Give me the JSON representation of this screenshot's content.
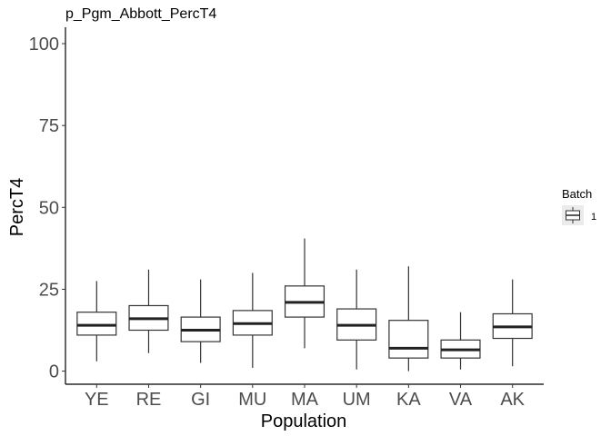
{
  "chart_data": {
    "type": "boxplot",
    "title": "p_Pgm_Abbott_PercT4",
    "xlabel": "Population",
    "ylabel": "PercT4",
    "ylim": [
      -4,
      105
    ],
    "yticks": [
      0,
      25,
      50,
      75,
      100
    ],
    "grid": false,
    "legend": {
      "title": "Batch",
      "entries": [
        "1"
      ],
      "position": "right"
    },
    "categories": [
      "YE",
      "RE",
      "GI",
      "MU",
      "MA",
      "UM",
      "KA",
      "VA",
      "AK"
    ],
    "boxes": [
      {
        "category": "YE",
        "min": 3,
        "q1": 11,
        "median": 14,
        "q3": 18,
        "max": 27.5
      },
      {
        "category": "RE",
        "min": 5.5,
        "q1": 12.5,
        "median": 16,
        "q3": 20,
        "max": 31
      },
      {
        "category": "GI",
        "min": 2.5,
        "q1": 9,
        "median": 12.5,
        "q3": 16.5,
        "max": 28
      },
      {
        "category": "MU",
        "min": 1,
        "q1": 11,
        "median": 14.5,
        "q3": 18.5,
        "max": 30
      },
      {
        "category": "MA",
        "min": 7,
        "q1": 16.5,
        "median": 21,
        "q3": 26,
        "max": 40.5
      },
      {
        "category": "UM",
        "min": 0.5,
        "q1": 9.5,
        "median": 14,
        "q3": 19,
        "max": 31
      },
      {
        "category": "KA",
        "min": 0,
        "q1": 4,
        "median": 7,
        "q3": 15.5,
        "max": 32
      },
      {
        "category": "VA",
        "min": 0.5,
        "q1": 4,
        "median": 6.5,
        "q3": 9.5,
        "max": 18
      },
      {
        "category": "AK",
        "min": 1.5,
        "q1": 10,
        "median": 13.5,
        "q3": 17.5,
        "max": 28
      }
    ]
  }
}
